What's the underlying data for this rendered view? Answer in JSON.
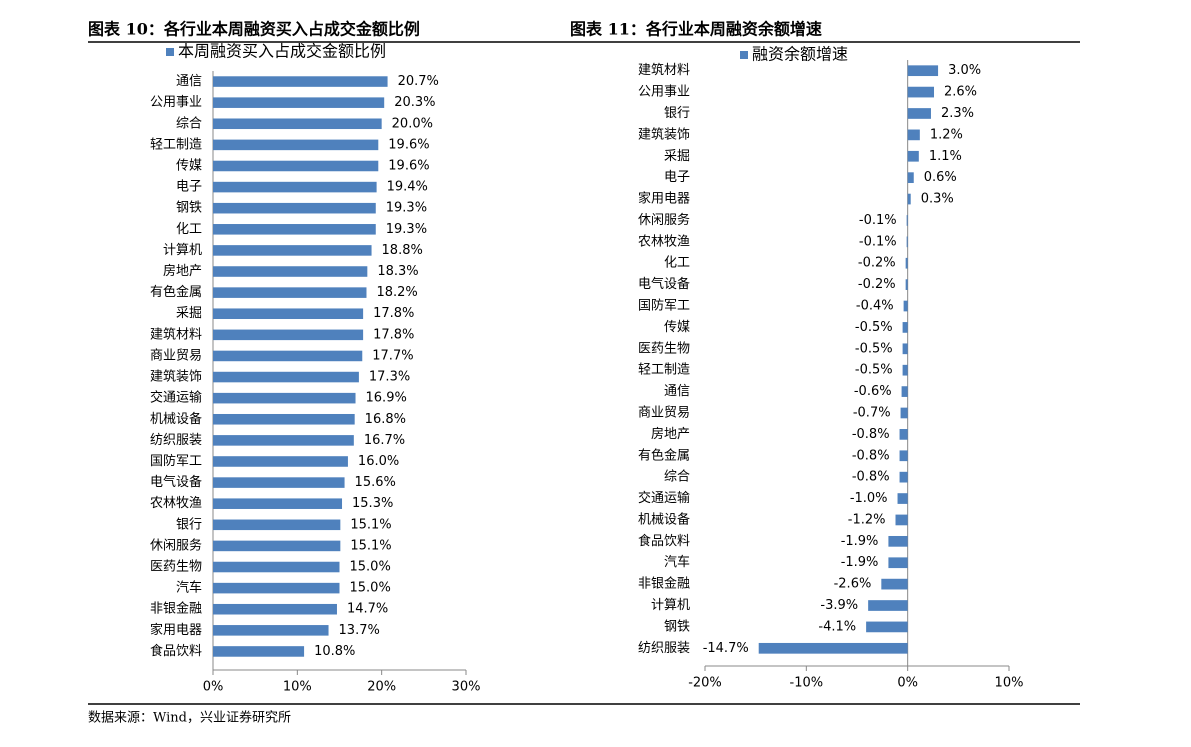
{
  "chart_data": [
    {
      "type": "hbar",
      "title": "图表 10：各行业本周融资买入占成交金额比例",
      "categories": [
        "通信",
        "公用事业",
        "综合",
        "轻工制造",
        "传媒",
        "电子",
        "钢铁",
        "化工",
        "计算机",
        "房地产",
        "有色金属",
        "采掘",
        "建筑材料",
        "商业贸易",
        "建筑装饰",
        "交通运输",
        "机械设备",
        "纺织服装",
        "国防军工",
        "电气设备",
        "农林牧渔",
        "银行",
        "休闲服务",
        "医药生物",
        "汽车",
        "非银金融",
        "家用电器",
        "食品饮料"
      ],
      "series": [
        {
          "name": "本周融资买入占成交金额比例",
          "color": "#4f81bd",
          "values": [
            20.7,
            20.3,
            20.0,
            19.6,
            19.6,
            19.4,
            19.3,
            19.3,
            18.8,
            18.3,
            18.2,
            17.8,
            17.8,
            17.7,
            17.3,
            16.9,
            16.8,
            16.7,
            16.0,
            15.6,
            15.3,
            15.1,
            15.1,
            15.0,
            15.0,
            14.7,
            13.7,
            10.8
          ],
          "value_labels": [
            "20.7%",
            "20.3%",
            "20.0%",
            "19.6%",
            "19.6%",
            "19.4%",
            "19.3%",
            "19.3%",
            "18.8%",
            "18.3%",
            "18.2%",
            "17.8%",
            "17.8%",
            "17.7%",
            "17.3%",
            "16.9%",
            "16.8%",
            "16.7%",
            "16.0%",
            "15.6%",
            "15.3%",
            "15.1%",
            "15.1%",
            "15.0%",
            "15.0%",
            "14.7%",
            "13.7%",
            "10.8%"
          ]
        }
      ],
      "xlim": [
        0,
        30
      ],
      "xticks": [
        {
          "value": 0,
          "label": "0%"
        },
        {
          "value": 10,
          "label": "10%"
        },
        {
          "value": 20,
          "label": "20%"
        },
        {
          "value": 30,
          "label": "30%"
        }
      ]
    },
    {
      "type": "hbar",
      "title": "图表 11：各行业本周融资余额增速",
      "categories": [
        "建筑材料",
        "公用事业",
        "银行",
        "建筑装饰",
        "采掘",
        "电子",
        "家用电器",
        "休闲服务",
        "农林牧渔",
        "化工",
        "电气设备",
        "国防军工",
        "传媒",
        "医药生物",
        "轻工制造",
        "通信",
        "商业贸易",
        "房地产",
        "有色金属",
        "综合",
        "交通运输",
        "机械设备",
        "食品饮料",
        "汽车",
        "非银金融",
        "计算机",
        "钢铁",
        "纺织服装"
      ],
      "series": [
        {
          "name": "融资余额增速",
          "color": "#4f81bd",
          "values": [
            3.0,
            2.6,
            2.3,
            1.2,
            1.1,
            0.6,
            0.3,
            -0.1,
            -0.1,
            -0.2,
            -0.2,
            -0.4,
            -0.5,
            -0.5,
            -0.5,
            -0.6,
            -0.7,
            -0.8,
            -0.8,
            -0.8,
            -1.0,
            -1.2,
            -1.9,
            -1.9,
            -2.6,
            -3.9,
            -4.1,
            -14.7
          ],
          "value_labels": [
            "3.0%",
            "2.6%",
            "2.3%",
            "1.2%",
            "1.1%",
            "0.6%",
            "0.3%",
            "-0.1%",
            "-0.1%",
            "-0.2%",
            "-0.2%",
            "-0.4%",
            "-0.5%",
            "-0.5%",
            "-0.5%",
            "-0.6%",
            "-0.7%",
            "-0.8%",
            "-0.8%",
            "-0.8%",
            "-1.0%",
            "-1.2%",
            "-1.9%",
            "-1.9%",
            "-2.6%",
            "-3.9%",
            "-4.1%",
            "-14.7%"
          ]
        }
      ],
      "xlim": [
        -20,
        10
      ],
      "xticks": [
        {
          "value": -20,
          "label": "-20%"
        },
        {
          "value": -10,
          "label": "-10%"
        },
        {
          "value": 0,
          "label": "0%"
        },
        {
          "value": 10,
          "label": "10%"
        }
      ]
    }
  ],
  "source": "数据来源：Wind，兴业证券研究所"
}
